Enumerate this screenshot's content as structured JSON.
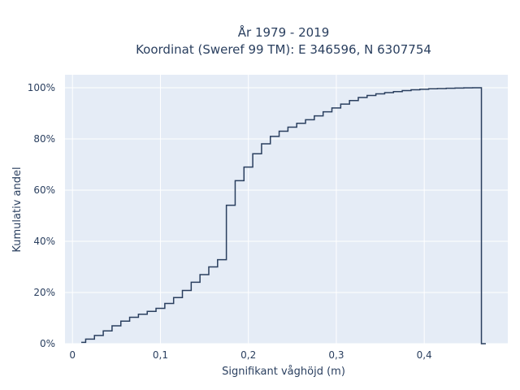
{
  "chart_data": {
    "type": "line",
    "line_shape": "step",
    "title": [
      "År 1979 - 2019",
      "Koordinat (Sweref 99 TM): E 346596, N 6307754"
    ],
    "xlabel": "Signifikant våghöjd (m)",
    "ylabel": "Kumulativ andel",
    "xlim": [
      -0.0085,
      0.495
    ],
    "ylim": [
      0,
      1.0
    ],
    "x_ticks": [
      0,
      0.1,
      0.2,
      0.3,
      0.4
    ],
    "x_tick_labels": [
      "0",
      "0,1",
      "0,2",
      "0,3",
      "0,4"
    ],
    "y_ticks": [
      0,
      0.2,
      0.4,
      0.6,
      0.8,
      1.0
    ],
    "y_tick_labels": [
      "0%",
      "20%",
      "40%",
      "60%",
      "80%",
      "100%"
    ],
    "grid": true,
    "colors": {
      "plot_bg": "#e5ecf6",
      "grid": "#ffffff",
      "line": "#2a3f5f",
      "text": "#2a3f5f"
    },
    "series": [
      {
        "x": [
          0.01,
          0.02,
          0.03,
          0.04,
          0.05,
          0.06,
          0.07,
          0.08,
          0.09,
          0.1,
          0.11,
          0.12,
          0.13,
          0.14,
          0.15,
          0.16,
          0.17,
          0.18,
          0.19,
          0.2,
          0.21,
          0.22,
          0.23,
          0.24,
          0.25,
          0.26,
          0.27,
          0.28,
          0.29,
          0.3,
          0.31,
          0.32,
          0.33,
          0.34,
          0.35,
          0.36,
          0.37,
          0.38,
          0.39,
          0.4,
          0.41,
          0.42,
          0.43,
          0.44,
          0.45,
          0.46,
          0.47
        ],
        "y": [
          0.005,
          0.018,
          0.032,
          0.05,
          0.07,
          0.088,
          0.103,
          0.115,
          0.126,
          0.138,
          0.157,
          0.18,
          0.208,
          0.24,
          0.27,
          0.3,
          0.328,
          0.541,
          0.637,
          0.69,
          0.742,
          0.781,
          0.81,
          0.83,
          0.846,
          0.861,
          0.875,
          0.89,
          0.906,
          0.921,
          0.936,
          0.95,
          0.962,
          0.97,
          0.976,
          0.981,
          0.985,
          0.989,
          0.992,
          0.994,
          0.996,
          0.997,
          0.998,
          0.999,
          0.9995,
          1.0,
          0.0
        ]
      }
    ]
  }
}
